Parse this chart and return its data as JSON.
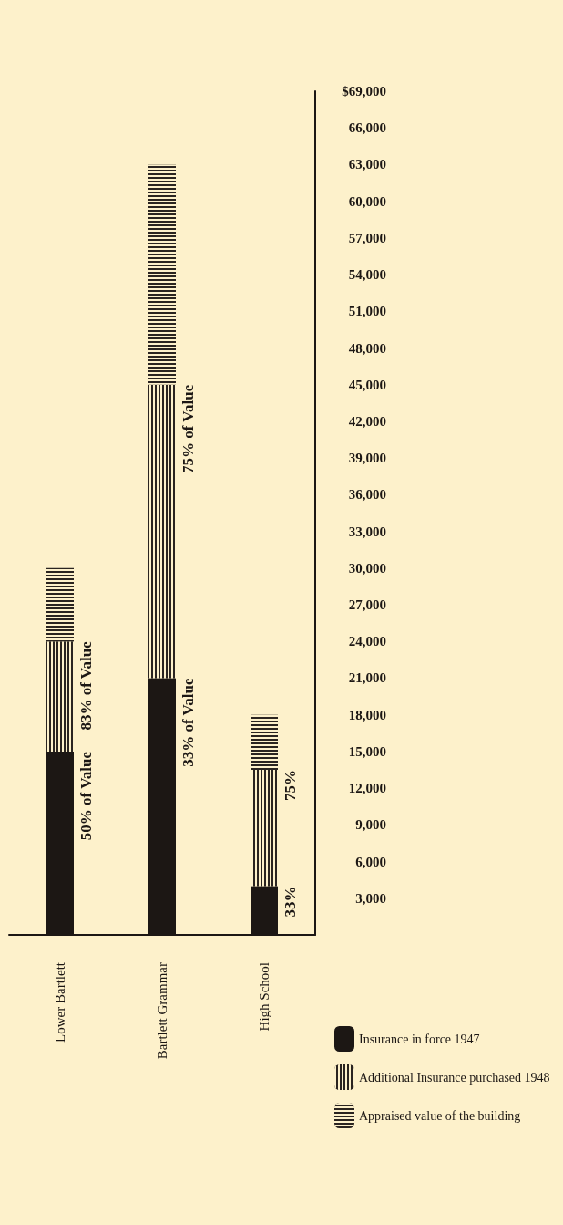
{
  "chart_data": {
    "type": "bar",
    "stacked": true,
    "categories": [
      "Lower Bartlett",
      "Bartlett Grammar",
      "High School"
    ],
    "series": [
      {
        "name": "Insurance in force 1947",
        "color": "#1c1714",
        "values": [
          15000,
          21000,
          4000
        ]
      },
      {
        "name": "Additional Insurance purchased 1948",
        "color": "#2a2420",
        "values": [
          9000,
          24000,
          9500
        ]
      },
      {
        "name": "Appraised value of the building",
        "color": "#2a2420",
        "values": [
          6000,
          18000,
          4500
        ]
      }
    ],
    "ylim": [
      0,
      69000
    ],
    "yticks": [
      {
        "value": 3000,
        "label": "3,000"
      },
      {
        "value": 6000,
        "label": "6,000"
      },
      {
        "value": 9000,
        "label": "9,000"
      },
      {
        "value": 12000,
        "label": "12,000"
      },
      {
        "value": 15000,
        "label": "15,000"
      },
      {
        "value": 18000,
        "label": "18,000"
      },
      {
        "value": 21000,
        "label": "21,000"
      },
      {
        "value": 24000,
        "label": "24,000"
      },
      {
        "value": 27000,
        "label": "27,000"
      },
      {
        "value": 30000,
        "label": "30,000"
      },
      {
        "value": 33000,
        "label": "33,000"
      },
      {
        "value": 36000,
        "label": "36,000"
      },
      {
        "value": 39000,
        "label": "39,000"
      },
      {
        "value": 42000,
        "label": "42,000"
      },
      {
        "value": 45000,
        "label": "45,000"
      },
      {
        "value": 48000,
        "label": "48,000"
      },
      {
        "value": 51000,
        "label": "51,000"
      },
      {
        "value": 54000,
        "label": "54,000"
      },
      {
        "value": 57000,
        "label": "57,000"
      },
      {
        "value": 60000,
        "label": "60,000"
      },
      {
        "value": 63000,
        "label": "63,000"
      },
      {
        "value": 66000,
        "label": "66,000"
      },
      {
        "value": 69000,
        "label": "$69,000"
      }
    ],
    "annotations": [
      {
        "text": "50% of Value",
        "x": "Lower Bartlett",
        "y": 15000
      },
      {
        "text": "83% of Value",
        "x": "Lower Bartlett",
        "y": 24000
      },
      {
        "text": "33% of Value",
        "x": "Bartlett Grammar",
        "y": 21000
      },
      {
        "text": "75% of Value",
        "x": "Bartlett Grammar",
        "y": 45000
      },
      {
        "text": "33%",
        "x": "High School",
        "y": 4000
      },
      {
        "text": "75%",
        "x": "High School",
        "y": 13500
      }
    ],
    "grid": false,
    "legend": "bottom right"
  }
}
